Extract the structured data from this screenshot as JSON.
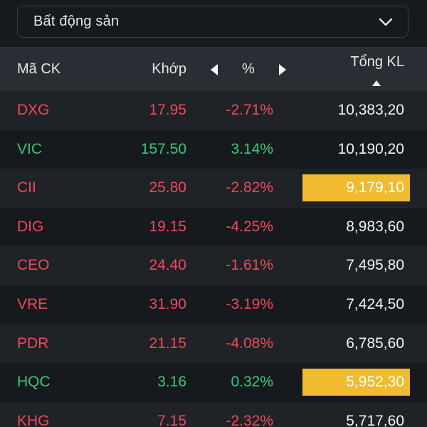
{
  "filter": {
    "selected": "Bất động sản",
    "chevron_icon": "chevron-down-icon"
  },
  "table": {
    "headers": {
      "code": "Mã CK",
      "price": "Khớp",
      "pct": "%",
      "volume": "Tổng KL"
    },
    "colors": {
      "up": "#35c97a",
      "down": "#ec4a5a",
      "highlight": "#f0bb2f"
    },
    "rows": [
      {
        "code": "DXG",
        "price": "17.95",
        "pct": "-2.71%",
        "volume": "10,383,20",
        "trend": "down",
        "highlight": false
      },
      {
        "code": "VIC",
        "price": "157.50",
        "pct": "3.14%",
        "volume": "10,190,20",
        "trend": "up",
        "highlight": false
      },
      {
        "code": "CII",
        "price": "25.80",
        "pct": "-2.82%",
        "volume": "9,179,10",
        "trend": "down",
        "highlight": true
      },
      {
        "code": "DIG",
        "price": "19.15",
        "pct": "-4.25%",
        "volume": "8,983,60",
        "trend": "down",
        "highlight": false
      },
      {
        "code": "CEO",
        "price": "24.40",
        "pct": "-1.61%",
        "volume": "7,495,80",
        "trend": "down",
        "highlight": false
      },
      {
        "code": "VRE",
        "price": "31.90",
        "pct": "-3.19%",
        "volume": "7,424,50",
        "trend": "down",
        "highlight": false
      },
      {
        "code": "PDR",
        "price": "21.15",
        "pct": "-4.08%",
        "volume": "6,785,60",
        "trend": "down",
        "highlight": false
      },
      {
        "code": "HQC",
        "price": "3.16",
        "pct": "0.32%",
        "volume": "5,952,30",
        "trend": "up",
        "highlight": true
      },
      {
        "code": "KHG",
        "price": "7.15",
        "pct": "-2.32%",
        "volume": "5,717,60",
        "trend": "down",
        "highlight": false
      }
    ]
  }
}
